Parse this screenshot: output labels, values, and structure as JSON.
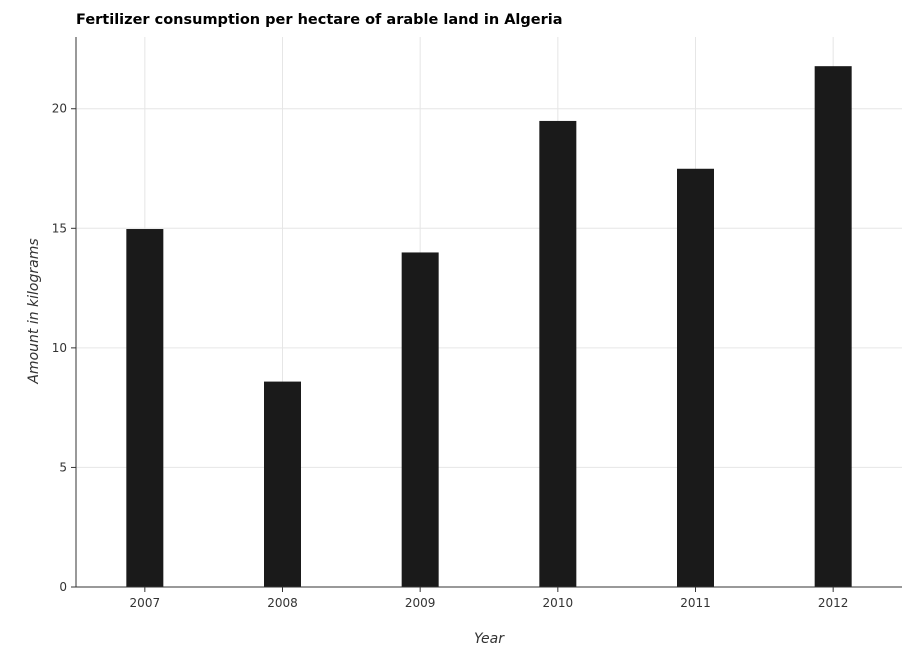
{
  "chart_data": {
    "type": "bar",
    "title": "Fertilizer consumption per hectare of arable land in Algeria",
    "xlabel": "Year",
    "ylabel": "Amount in kilograms",
    "categories": [
      "2007",
      "2008",
      "2009",
      "2010",
      "2011",
      "2012"
    ],
    "values": [
      14.97,
      8.59,
      13.99,
      19.49,
      17.49,
      21.78
    ],
    "ylim": [
      0,
      23
    ],
    "yticks": [
      0,
      5,
      10,
      15,
      20
    ],
    "grid": true,
    "bar_color": "#1a1a1a"
  }
}
